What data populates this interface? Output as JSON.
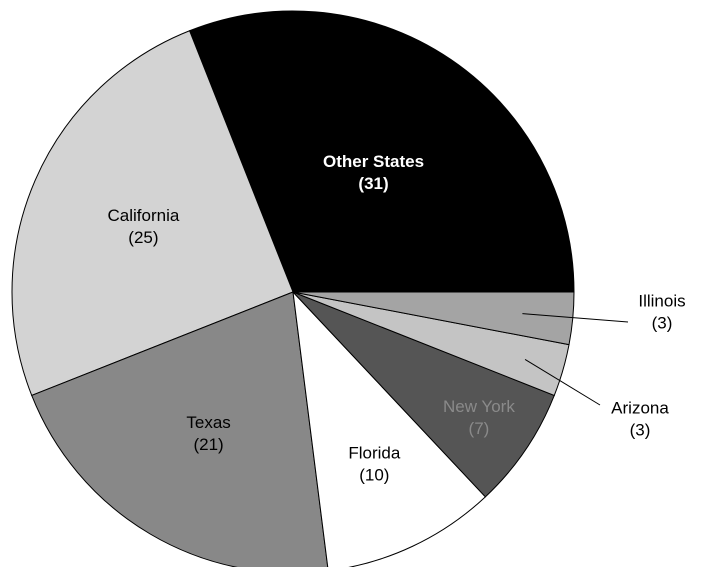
{
  "chart_data": {
    "type": "pie",
    "categories": [
      "Other States",
      "California",
      "Texas",
      "Florida",
      "New York",
      "Arizona",
      "Illinois"
    ],
    "values": [
      31,
      25,
      21,
      10,
      7,
      3,
      3
    ],
    "value_labels": [
      "(31)",
      "(25)",
      "(21)",
      "(10)",
      "(7)",
      "(3)",
      "(3)"
    ],
    "colors": [
      "#000000",
      "#d3d3d3",
      "#888888",
      "#ffffff",
      "#555555",
      "#c4c4c4",
      "#a4a4a4"
    ],
    "label_colors": [
      "#ffffff",
      "#000000",
      "#000000",
      "#000000",
      "#8a8a8a",
      "#000000",
      "#000000"
    ]
  }
}
